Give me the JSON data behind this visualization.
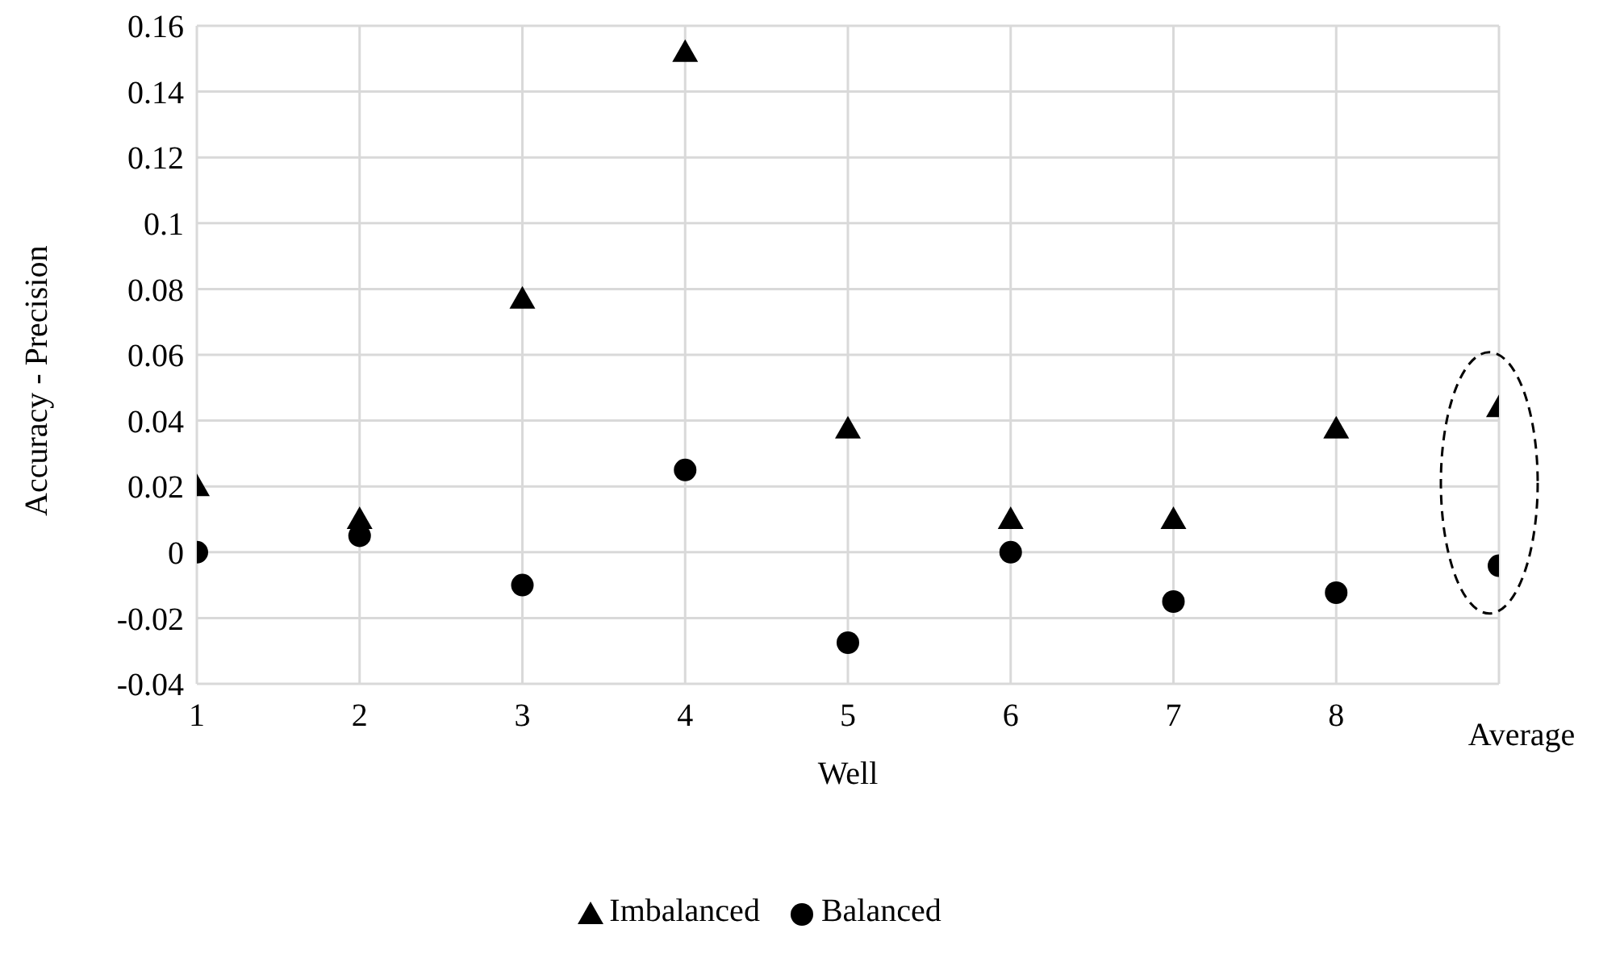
{
  "chart_data": {
    "type": "scatter",
    "xlabel": "Well",
    "ylabel": "Accuracy - Precision",
    "categories": [
      "1",
      "2",
      "3",
      "4",
      "5",
      "6",
      "7",
      "8",
      "Average"
    ],
    "series": [
      {
        "name": "Imbalanced",
        "color": "#000000",
        "marker": "triangle",
        "values": [
          0.02,
          0.01,
          0.077,
          0.152,
          0.0375,
          0.01,
          0.01,
          0.0375,
          0.044
        ]
      },
      {
        "name": "Balanced",
        "color": "#000000",
        "marker": "circle",
        "values": [
          0,
          0.005,
          -0.01,
          0.025,
          -0.0275,
          0,
          -0.015,
          -0.0123,
          -0.0041
        ]
      }
    ],
    "ylim": [
      -0.04,
      0.16
    ],
    "yticks": [
      -0.04,
      -0.02,
      0,
      0.02,
      0.04,
      0.06,
      0.08,
      0.1,
      0.12,
      0.14,
      0.16
    ],
    "grid": true,
    "legend": "bottom"
  }
}
